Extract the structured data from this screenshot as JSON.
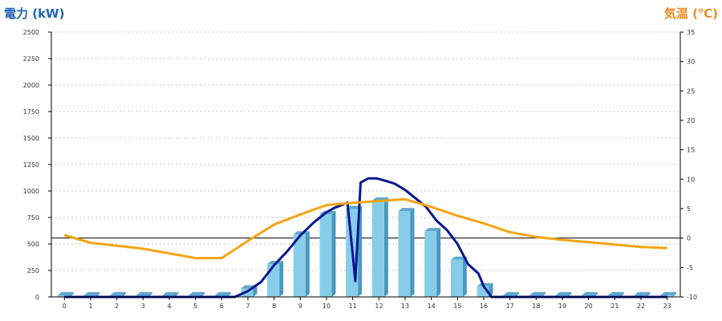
{
  "chart_data": {
    "type": "bar",
    "y_left_label": "電力 (kW)",
    "y_right_label": "気温 (℃)",
    "x_ticks": [
      "0",
      "1",
      "2",
      "3",
      "4",
      "5",
      "6",
      "7",
      "8",
      "9",
      "10",
      "11",
      "12",
      "13",
      "14",
      "15",
      "16",
      "17",
      "18",
      "19",
      "20",
      "21",
      "22",
      "23"
    ],
    "y_left_ticks": [
      "0",
      "250",
      "500",
      "750",
      "1000",
      "1250",
      "1500",
      "1750",
      "2000",
      "2250",
      "2500"
    ],
    "y_right_ticks": [
      "-10",
      "-5",
      "0",
      "5",
      "10",
      "15",
      "20",
      "25",
      "30",
      "35"
    ],
    "y_left_range": [
      0,
      2500
    ],
    "y_right_range": [
      -10,
      35
    ],
    "grid": true,
    "bars": {
      "axis": "left",
      "values": [
        0,
        0,
        0,
        0,
        0,
        0,
        0,
        80,
        310,
        590,
        780,
        830,
        910,
        810,
        620,
        350,
        100,
        0,
        0,
        0,
        0,
        0,
        0,
        0
      ]
    },
    "power_line": {
      "axis": "left",
      "x": [
        0,
        1,
        2,
        3,
        4,
        5,
        6,
        6.5,
        7,
        7.5,
        8,
        8.5,
        9,
        9.5,
        10,
        10.3,
        10.6,
        10.8,
        11,
        11.1,
        11.3,
        11.6,
        11.9,
        12.2,
        12.6,
        13,
        13.4,
        13.8,
        14.2,
        14.6,
        15,
        15.4,
        15.8,
        16,
        16.3,
        17,
        18,
        19,
        20,
        21,
        22,
        23
      ],
      "y": [
        0,
        0,
        0,
        0,
        0,
        0,
        0,
        0,
        55,
        140,
        300,
        430,
        580,
        700,
        800,
        840,
        870,
        890,
        400,
        150,
        1080,
        1120,
        1120,
        1100,
        1070,
        1010,
        930,
        850,
        720,
        630,
        500,
        310,
        220,
        100,
        0,
        0,
        0,
        0,
        0,
        0,
        0,
        0
      ]
    },
    "temp_line": {
      "axis": "right",
      "x": [
        0,
        1,
        2,
        3,
        4,
        5,
        6,
        7,
        8,
        9,
        10,
        11,
        12,
        13,
        14,
        15,
        16,
        17,
        18,
        19,
        20,
        21,
        22,
        23
      ],
      "y": [
        0.5,
        -0.8,
        -1.3,
        -1.8,
        -2.6,
        -3.4,
        -3.4,
        -0.5,
        2.3,
        4.0,
        5.6,
        6.0,
        6.3,
        6.6,
        5.3,
        3.8,
        2.5,
        1.0,
        0.2,
        -0.3,
        -0.7,
        -1.1,
        -1.5,
        -1.7
      ]
    },
    "colors": {
      "bar_front": "#87cde9",
      "bar_side": "#4a98c1",
      "bar_top": "#5fa9cf",
      "power_line": "#0a1690",
      "temp_line": "#f5a413",
      "left_label": "#1e64b4",
      "right_label": "#f08a1d",
      "grid": "#c8c8c8",
      "axis": "#000000"
    }
  }
}
